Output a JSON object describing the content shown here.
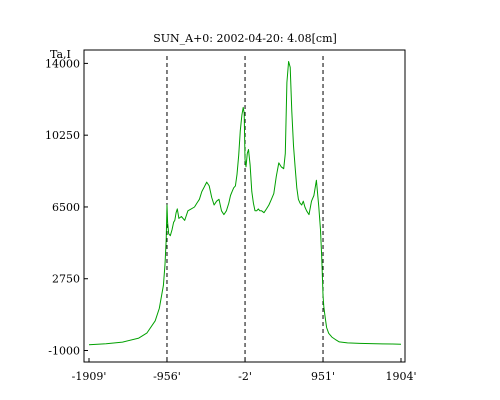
{
  "chart_data": {
    "type": "line",
    "title": "SUN_A+0: 2002-04-20: 4.08[cm]",
    "ylabel": "Ta,I",
    "xlabel": "",
    "x_tick_labels": [
      "-1909'",
      "-956'",
      "-2'",
      "951'",
      "1904'"
    ],
    "x_ticks": [
      -1909,
      -956,
      -2,
      951,
      1904
    ],
    "y_tick_labels": [
      "-1000",
      "2750",
      "6500",
      "10250",
      "14000"
    ],
    "y_ticks": [
      -1000,
      2750,
      6500,
      10250,
      14000
    ],
    "xlim": [
      -1909,
      1904
    ],
    "ylim": [
      -1600,
      14700
    ],
    "grid": false,
    "reference_lines": [
      -956,
      -2,
      951
    ],
    "series": [
      {
        "color": "#00a000",
        "x": [
          -1909,
          -1700,
          -1500,
          -1300,
          -1200,
          -1100,
          -1050,
          -1000,
          -980,
          -965,
          -956,
          -948,
          -935,
          -915,
          -895,
          -875,
          -860,
          -845,
          -830,
          -810,
          -780,
          -740,
          -700,
          -660,
          -620,
          -590,
          -560,
          -530,
          -500,
          -470,
          -440,
          -410,
          -380,
          -350,
          -320,
          -290,
          -260,
          -230,
          -200,
          -180,
          -160,
          -140,
          -120,
          -100,
          -80,
          -60,
          -40,
          -25,
          -12,
          -2,
          10,
          25,
          40,
          60,
          80,
          100,
          120,
          140,
          160,
          180,
          200,
          230,
          260,
          290,
          320,
          350,
          380,
          410,
          440,
          470,
          490,
          510,
          530,
          550,
          570,
          590,
          610,
          630,
          650,
          670,
          690,
          710,
          730,
          750,
          780,
          810,
          840,
          870,
          900,
          920,
          935,
          945,
          951,
          960,
          975,
          995,
          1020,
          1060,
          1100,
          1150,
          1250,
          1400,
          1600,
          1800,
          1904
        ],
        "y": [
          -700,
          -650,
          -560,
          -350,
          -80,
          550,
          1200,
          2400,
          3500,
          4800,
          6600,
          5700,
          5100,
          5000,
          5300,
          5700,
          5800,
          6200,
          6400,
          5900,
          6000,
          5800,
          6300,
          6400,
          6500,
          6700,
          6900,
          7300,
          7550,
          7800,
          7600,
          7000,
          6600,
          6800,
          6900,
          6300,
          6100,
          6300,
          6700,
          7100,
          7300,
          7500,
          7600,
          8200,
          9200,
          10500,
          11300,
          11700,
          11400,
          9000,
          8600,
          9300,
          9500,
          8700,
          7300,
          6700,
          6300,
          6300,
          6400,
          6300,
          6300,
          6200,
          6400,
          6600,
          6900,
          7200,
          8100,
          8800,
          8600,
          8500,
          9300,
          13000,
          14100,
          13800,
          11500,
          9700,
          8600,
          7500,
          6900,
          6700,
          6600,
          6800,
          6500,
          6300,
          6100,
          6800,
          7100,
          7900,
          6500,
          5300,
          3900,
          2700,
          1900,
          1300,
          800,
          200,
          -100,
          -300,
          -420,
          -550,
          -600,
          -630,
          -650,
          -660,
          -670
        ]
      }
    ]
  }
}
